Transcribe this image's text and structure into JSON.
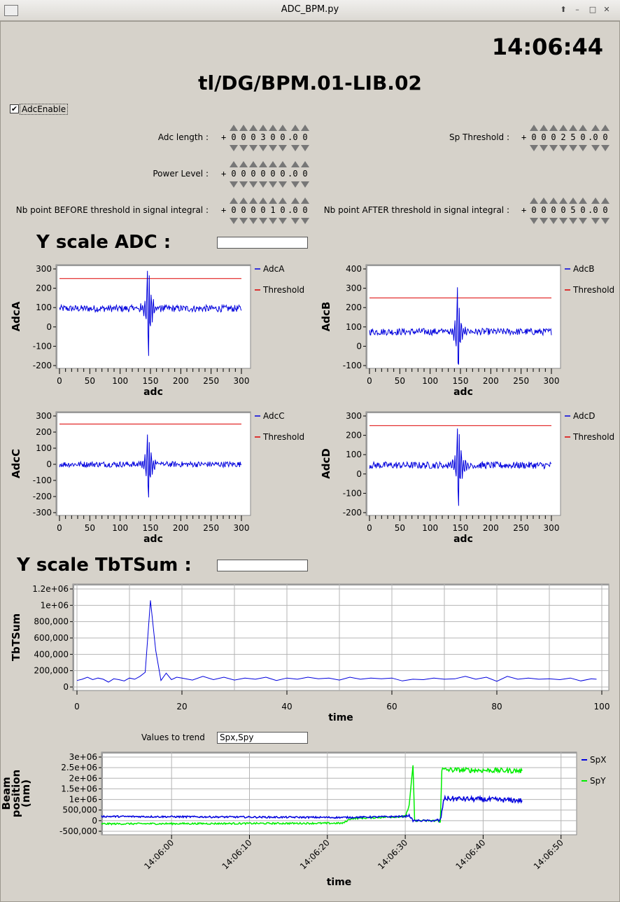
{
  "window": {
    "title": "ADC_BPM.py"
  },
  "clock": "14:06:44",
  "device": "tl/DG/BPM.01-LIB.02",
  "adc_enable": {
    "label": "AdcEnable",
    "checked": true
  },
  "params": [
    {
      "label": "Adc length :",
      "sign": "+",
      "digits": [
        "0",
        "0",
        "0",
        "3",
        "0",
        "0",
        "0",
        "0"
      ]
    },
    {
      "label": "Sp Threshold :",
      "sign": "+",
      "digits": [
        "0",
        "0",
        "0",
        "2",
        "5",
        "0",
        "0",
        "0"
      ]
    },
    {
      "label": "Power Level :",
      "sign": "+",
      "digits": [
        "0",
        "0",
        "0",
        "0",
        "0",
        "0",
        "0",
        "0"
      ]
    },
    {
      "label": "Nb point BEFORE threshold in signal integral :",
      "sign": "+",
      "digits": [
        "0",
        "0",
        "0",
        "0",
        "1",
        "0",
        "0",
        "0"
      ]
    },
    {
      "label": "Nb point AFTER threshold in signal integral :",
      "sign": "+",
      "digits": [
        "0",
        "0",
        "0",
        "0",
        "5",
        "0",
        "0",
        "0"
      ]
    }
  ],
  "yscale_adc": {
    "label": "Y scale ADC :",
    "value": ""
  },
  "yscale_tbt": {
    "label": "Y scale TbTSum :",
    "value": ""
  },
  "trend": {
    "label": "Values to trend",
    "value": "Spx,Spy"
  },
  "colors": {
    "blue": "#0000dd",
    "red": "#dd0000",
    "green": "#00ee00",
    "grid": "#b4b4b4"
  },
  "chart_data": [
    {
      "type": "line",
      "id": "adcA",
      "ylabel": "AdcA",
      "xlabel": "adc",
      "xlim": [
        0,
        300
      ],
      "ylim": [
        -200,
        300
      ],
      "xticks": [
        0,
        50,
        100,
        150,
        200,
        250,
        300
      ],
      "yticks": [
        -200,
        -100,
        0,
        100,
        200,
        300
      ],
      "series": [
        {
          "name": "AdcA",
          "baseline": 95,
          "peak": 290,
          "trough": -150
        },
        {
          "name": "Threshold",
          "value": 250
        }
      ]
    },
    {
      "type": "line",
      "id": "adcB",
      "ylabel": "AdcB",
      "xlabel": "adc",
      "xlim": [
        0,
        300
      ],
      "ylim": [
        -100,
        400
      ],
      "xticks": [
        0,
        50,
        100,
        150,
        200,
        250,
        300
      ],
      "yticks": [
        -100,
        0,
        100,
        200,
        300,
        400
      ],
      "series": [
        {
          "name": "AdcB",
          "baseline": 75,
          "peak": 305,
          "trough": -95
        },
        {
          "name": "Threshold",
          "value": 250
        }
      ]
    },
    {
      "type": "line",
      "id": "adcC",
      "ylabel": "AdcC",
      "xlabel": "adc",
      "xlim": [
        0,
        300
      ],
      "ylim": [
        -300,
        300
      ],
      "xticks": [
        0,
        50,
        100,
        150,
        200,
        250,
        300
      ],
      "yticks": [
        -300,
        -200,
        -100,
        0,
        100,
        200,
        300
      ],
      "series": [
        {
          "name": "AdcC",
          "baseline": 0,
          "peak": 185,
          "trough": -205
        },
        {
          "name": "Threshold",
          "value": 250
        }
      ]
    },
    {
      "type": "line",
      "id": "adcD",
      "ylabel": "AdcD",
      "xlabel": "adc",
      "xlim": [
        0,
        300
      ],
      "ylim": [
        -200,
        300
      ],
      "xticks": [
        0,
        50,
        100,
        150,
        200,
        250,
        300
      ],
      "yticks": [
        -200,
        -100,
        0,
        100,
        200,
        300
      ],
      "series": [
        {
          "name": "AdcD",
          "baseline": 45,
          "peak": 235,
          "trough": -165
        },
        {
          "name": "Threshold",
          "value": 250
        }
      ]
    },
    {
      "type": "line",
      "id": "tbt",
      "ylabel": "TbTSum",
      "xlabel": "time",
      "xlim": [
        0,
        100
      ],
      "ylim": [
        0,
        1200000
      ],
      "xticks": [
        0,
        20,
        40,
        60,
        80,
        100
      ],
      "yticks": [
        0,
        200000,
        400000,
        600000,
        800000,
        1000000,
        1200000
      ],
      "ytick_labels": [
        "0",
        "200,000",
        "400,000",
        "600,000",
        "800,000",
        "1e+06",
        "1.2e+06"
      ],
      "series": [
        {
          "name": "TbTSum",
          "x": [
            0,
            1,
            2,
            3,
            4,
            5,
            6,
            7,
            8,
            9,
            10,
            11,
            12,
            13,
            14,
            15,
            16,
            17,
            18,
            19,
            20,
            22,
            24,
            26,
            28,
            30,
            32,
            34,
            36,
            38,
            40,
            42,
            44,
            46,
            48,
            50,
            52,
            54,
            56,
            58,
            60,
            62,
            64,
            66,
            68,
            70,
            72,
            74,
            76,
            78,
            80,
            82,
            84,
            86,
            88,
            90,
            92,
            94,
            96,
            98,
            99
          ],
          "y": [
            80000,
            95000,
            120000,
            90000,
            110000,
            95000,
            60000,
            100000,
            90000,
            75000,
            110000,
            95000,
            130000,
            180000,
            1060000,
            450000,
            80000,
            170000,
            90000,
            120000,
            110000,
            85000,
            130000,
            90000,
            120000,
            85000,
            110000,
            95000,
            120000,
            80000,
            110000,
            95000,
            120000,
            100000,
            110000,
            85000,
            120000,
            95000,
            110000,
            100000,
            110000,
            75000,
            95000,
            90000,
            110000,
            95000,
            100000,
            130000,
            95000,
            120000,
            70000,
            130000,
            95000,
            110000,
            95000,
            100000,
            90000,
            110000,
            75000,
            100000,
            95000
          ]
        }
      ]
    },
    {
      "type": "line",
      "id": "trend",
      "ylabel": "Beam position (nm)",
      "xlabel": "time",
      "ylim": [
        -500000,
        3000000
      ],
      "yticks": [
        -500000,
        0,
        500000,
        1000000,
        1500000,
        2000000,
        2500000,
        3000000
      ],
      "ytick_labels": [
        "-500,000",
        "0",
        "500,000",
        "1e+06",
        "1.5e+06",
        "2e+06",
        "2.5e+06",
        "3e+06"
      ],
      "xticks": [
        "14:06:00",
        "14:06:10",
        "14:06:20",
        "14:06:30",
        "14:06:40",
        "14:06:50"
      ],
      "series": [
        {
          "name": "SpX",
          "t": [
            -9,
            22,
            30,
            30.5,
            31,
            34.5,
            35,
            45
          ],
          "y": [
            200000,
            150000,
            200000,
            250000,
            0,
            0,
            1050000,
            950000
          ]
        },
        {
          "name": "SpY",
          "t": [
            -9,
            22,
            23,
            30,
            30.5,
            31,
            31.2,
            34.5,
            34.7,
            45
          ],
          "y": [
            -150000,
            -120000,
            100000,
            200000,
            700000,
            2600000,
            0,
            0,
            2400000,
            2350000
          ]
        }
      ]
    }
  ]
}
